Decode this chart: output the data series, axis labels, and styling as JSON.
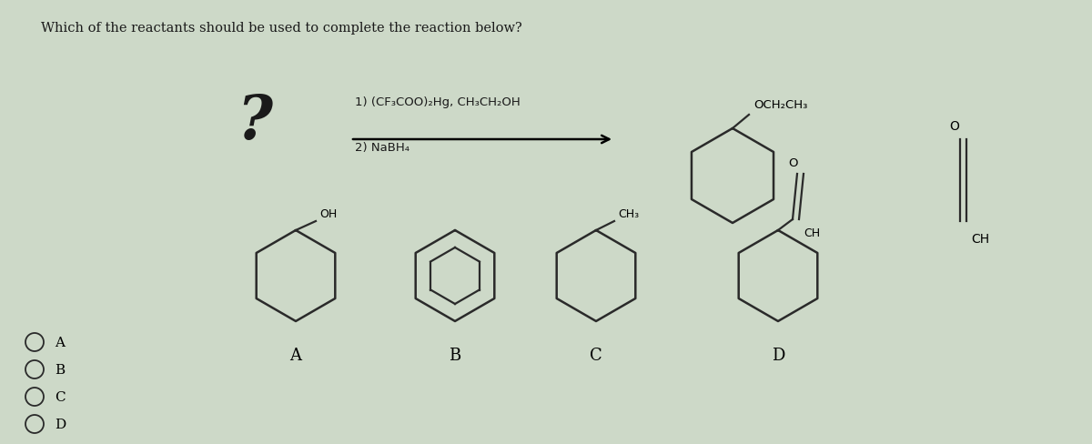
{
  "title": "Which of the reactants should be used to complete the reaction below?",
  "background_color": "#cdd9c8",
  "text_color": "#1a1a1a",
  "title_fontsize": 10.5,
  "reaction_line1": "1) (CF₃COO)₂Hg, CH₃CH₂OH",
  "reaction_line2": "2) NaBH₄",
  "choices": [
    "A",
    "B",
    "C",
    "D"
  ],
  "radio_labels": [
    "A",
    "B",
    "C",
    "D"
  ]
}
